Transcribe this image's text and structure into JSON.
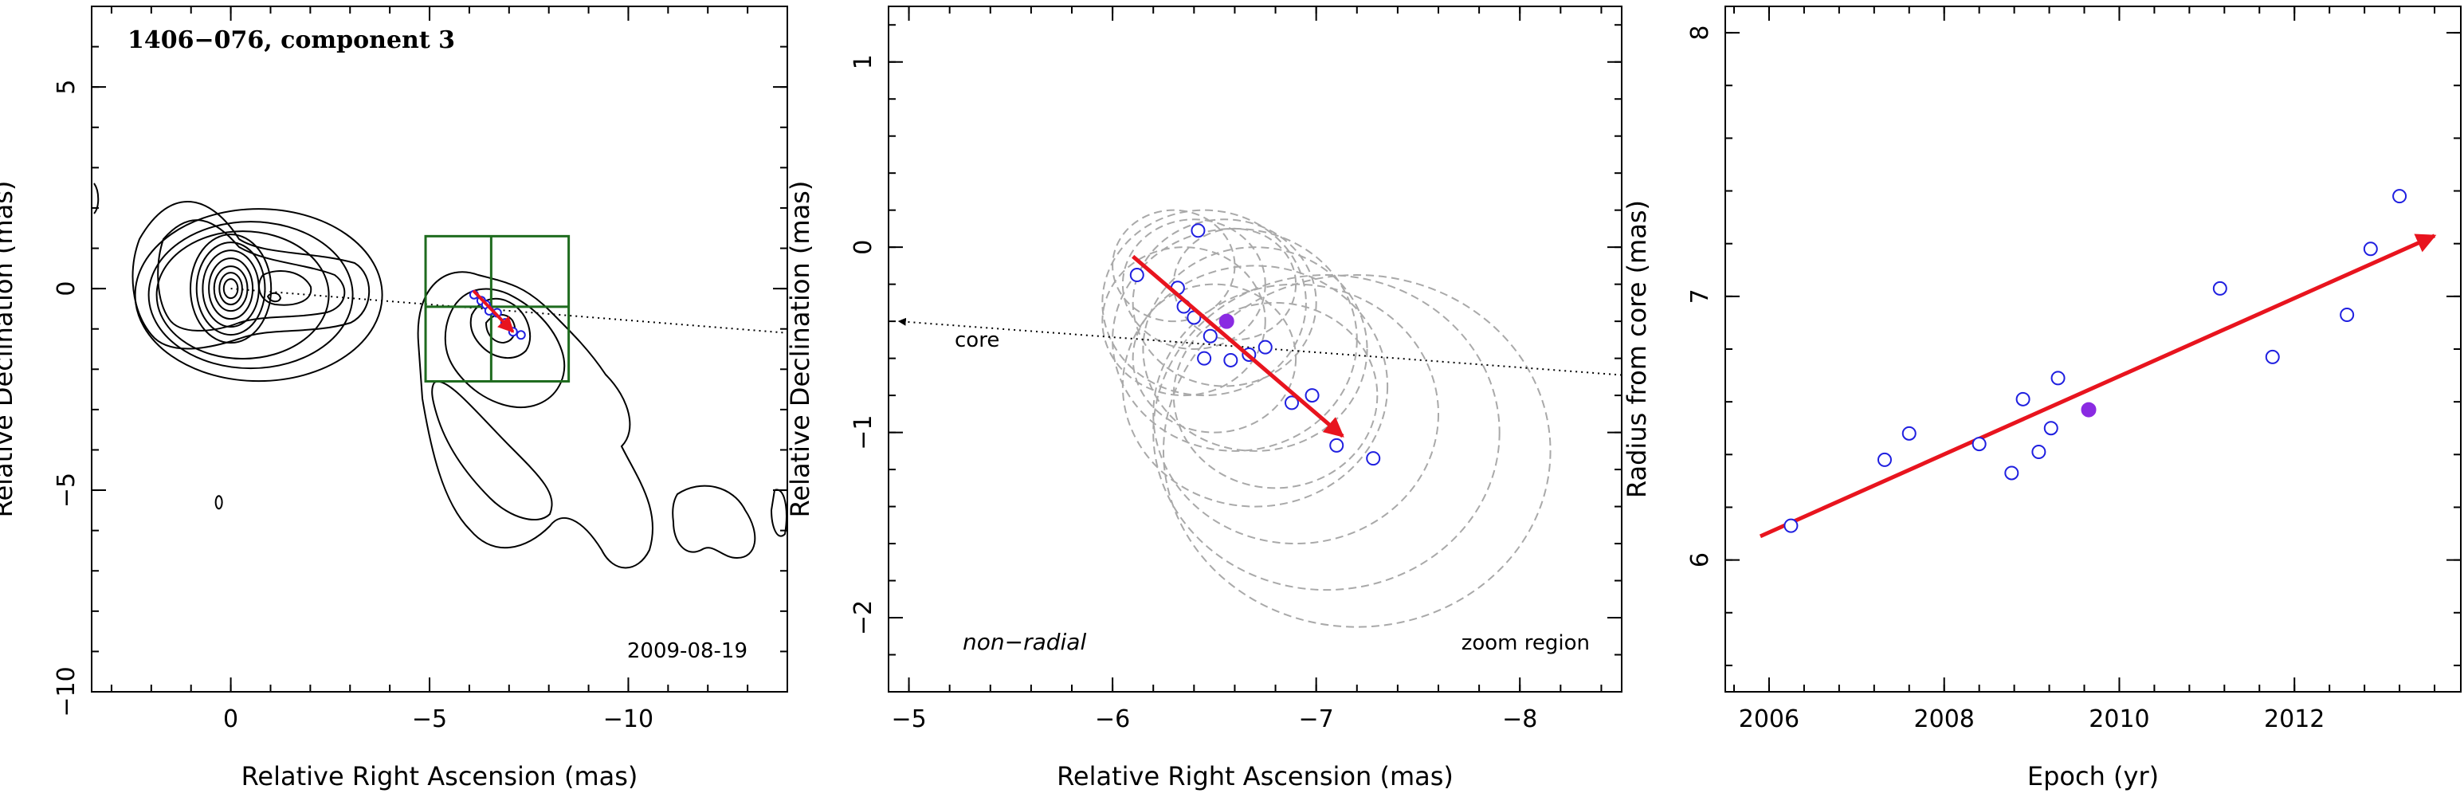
{
  "colors": {
    "arrow": "#e8141e",
    "points": "#1f1fe0",
    "filled_point": "#8a2be2",
    "box": "#1e6b1e",
    "circles": "#a9a9a9"
  },
  "chart_data": [
    {
      "type": "contour",
      "title": "1406−076, component 3",
      "date": "2009-08-19",
      "xlabel": "Relative Right Ascension (mas)",
      "ylabel": "Relative Declination (mas)",
      "xlim": [
        3.5,
        -14
      ],
      "ylim": [
        -10,
        7
      ],
      "xticks": [
        0,
        -5,
        -10
      ],
      "xtick_labels": [
        "0",
        "−5",
        "−10"
      ],
      "yticks": [
        -10,
        -5,
        0,
        5
      ],
      "ytick_labels": [
        "−10",
        "−5",
        "0",
        "5"
      ],
      "core": [
        0,
        0
      ],
      "component": [
        -6.55,
        -0.45
      ],
      "motion_arrow": {
        "from": [
          -6.1,
          -0.05
        ],
        "to": [
          -7.1,
          -1.07
        ]
      },
      "zoom_box": {
        "x": [
          -4.9,
          -8.5
        ],
        "y": [
          1.3,
          -2.3
        ]
      },
      "points": [
        [
          -6.12,
          -0.15
        ],
        [
          -6.3,
          -0.3
        ],
        [
          -6.42,
          -0.4
        ],
        [
          -6.5,
          -0.55
        ],
        [
          -6.7,
          -0.6
        ],
        [
          -6.9,
          -0.85
        ],
        [
          -7.1,
          -1.07
        ],
        [
          -7.3,
          -1.15
        ]
      ]
    },
    {
      "type": "scatter",
      "title": "",
      "label": "non−radial",
      "zoom_label": "zoom region",
      "core_label": "core",
      "xlabel": "Relative Right Ascension (mas)",
      "ylabel": "Relative Declination (mas)",
      "xlim": [
        -4.9,
        -8.5
      ],
      "ylim": [
        -2.4,
        1.3
      ],
      "xticks": [
        -5,
        -6,
        -7,
        -8
      ],
      "xtick_labels": [
        "−5",
        "−6",
        "−7",
        "−8"
      ],
      "yticks": [
        -2,
        -1,
        0,
        1
      ],
      "ytick_labels": [
        "−2",
        "−1",
        "0",
        "1"
      ],
      "points": [
        [
          -6.12,
          -0.15
        ],
        [
          -6.42,
          0.09
        ],
        [
          -6.32,
          -0.22
        ],
        [
          -6.35,
          -0.32
        ],
        [
          -6.4,
          -0.38
        ],
        [
          -6.48,
          -0.48
        ],
        [
          -6.45,
          -0.6
        ],
        [
          -6.58,
          -0.61
        ],
        [
          -6.67,
          -0.58
        ],
        [
          -6.75,
          -0.54
        ],
        [
          -6.88,
          -0.84
        ],
        [
          -6.98,
          -0.8
        ],
        [
          -7.1,
          -1.07
        ],
        [
          -7.28,
          -1.14
        ]
      ],
      "filled_point": [
        -6.56,
        -0.4
      ],
      "motion_arrow": {
        "from": [
          -6.1,
          -0.05
        ],
        "to": [
          -7.13,
          -1.02
        ]
      },
      "core_line": {
        "from": [
          -4.95,
          -0.4
        ],
        "to": [
          -8.5,
          -0.69
        ]
      },
      "circles": [
        {
          "cx": -6.35,
          "cy": -0.4,
          "r": 0.4
        },
        {
          "cx": -6.4,
          "cy": -0.2,
          "r": 0.35
        },
        {
          "cx": -6.45,
          "cy": -0.3,
          "r": 0.5
        },
        {
          "cx": -6.55,
          "cy": -0.3,
          "r": 0.45
        },
        {
          "cx": -6.6,
          "cy": -0.5,
          "r": 0.6
        },
        {
          "cx": -6.5,
          "cy": -0.6,
          "r": 0.4
        },
        {
          "cx": -6.7,
          "cy": -0.55,
          "r": 0.55
        },
        {
          "cx": -6.7,
          "cy": -0.75,
          "r": 0.65
        },
        {
          "cx": -6.8,
          "cy": -0.8,
          "r": 0.5
        },
        {
          "cx": -6.9,
          "cy": -0.9,
          "r": 0.7
        },
        {
          "cx": -7.05,
          "cy": -1.0,
          "r": 0.85
        },
        {
          "cx": -7.2,
          "cy": -1.1,
          "r": 0.95
        },
        {
          "cx": -6.3,
          "cy": -0.1,
          "r": 0.3
        },
        {
          "cx": -6.6,
          "cy": -0.2,
          "r": 0.3
        }
      ]
    },
    {
      "type": "scatter",
      "title": "",
      "xlabel": "Epoch (yr)",
      "ylabel": "Radius from core (mas)",
      "xlim": [
        2005.5,
        2013.9
      ],
      "ylim": [
        5.5,
        8.1
      ],
      "xticks": [
        2006,
        2008,
        2010,
        2012
      ],
      "xtick_labels": [
        "2006",
        "2008",
        "2010",
        "2012"
      ],
      "yticks": [
        6,
        7,
        8
      ],
      "ytick_labels": [
        "6",
        "7",
        "8"
      ],
      "points": [
        [
          2006.25,
          6.13
        ],
        [
          2007.32,
          6.38
        ],
        [
          2007.6,
          6.48
        ],
        [
          2008.4,
          6.44
        ],
        [
          2008.77,
          6.33
        ],
        [
          2008.9,
          6.61
        ],
        [
          2009.08,
          6.41
        ],
        [
          2009.22,
          6.5
        ],
        [
          2009.3,
          6.69
        ],
        [
          2011.15,
          7.03
        ],
        [
          2011.75,
          6.77
        ],
        [
          2012.6,
          6.93
        ],
        [
          2012.87,
          7.18
        ],
        [
          2013.2,
          7.38
        ]
      ],
      "filled_point": [
        2009.65,
        6.57
      ],
      "fit_arrow": {
        "from": [
          2005.9,
          6.09
        ],
        "to": [
          2013.6,
          7.23
        ]
      }
    }
  ]
}
